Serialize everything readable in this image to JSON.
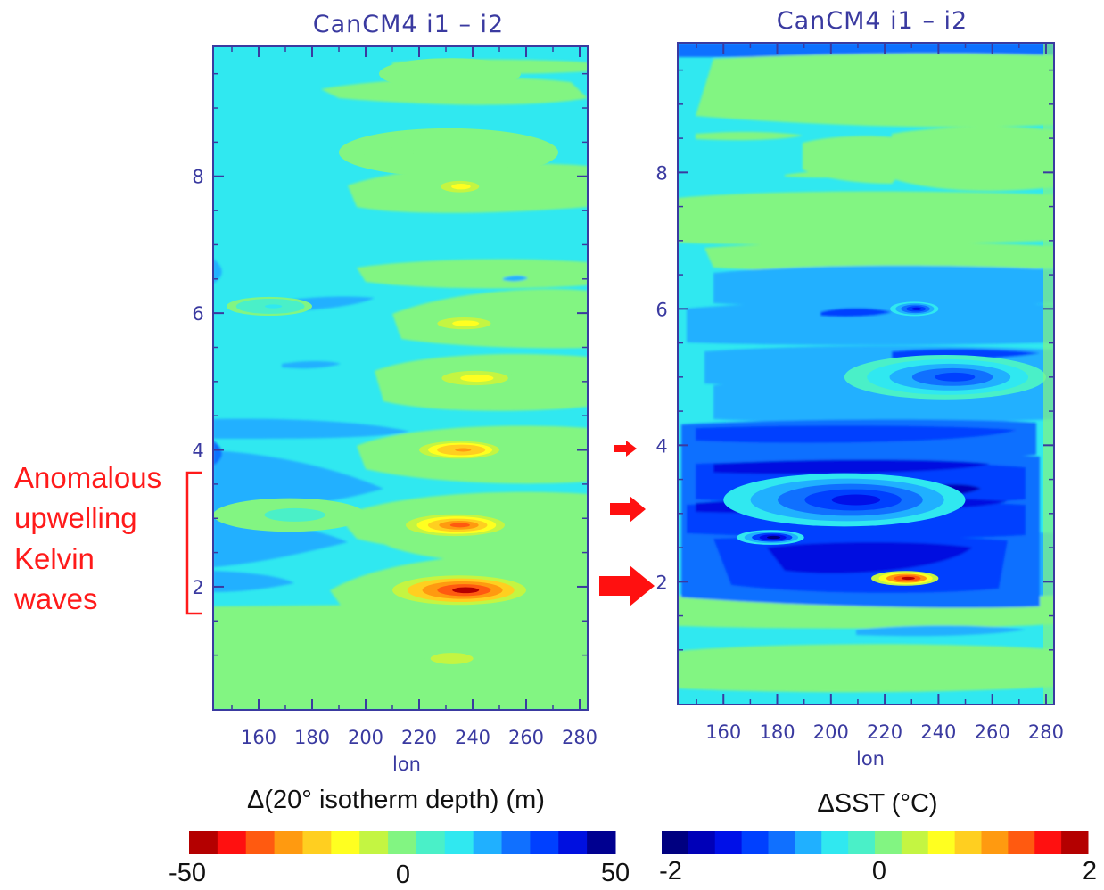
{
  "chart_data": [
    {
      "type": "heatmap",
      "title": "CanCM4 i1  –  i2",
      "xlabel": "lon",
      "x_ticks": [
        "160",
        "180",
        "200",
        "220",
        "240",
        "260",
        "280"
      ],
      "y_ticks": [
        "2",
        "4",
        "6",
        "8"
      ],
      "xlim": [
        143,
        283
      ],
      "ylim": [
        0.2,
        9.9
      ],
      "colorbar": {
        "label": "Δ(20° isotherm depth) (m)",
        "min_label": "-50",
        "mid_label": "0",
        "max_label": "50",
        "range": [
          -50,
          50
        ],
        "colors": [
          "#b40000",
          "#ff1010",
          "#ff5a10",
          "#ff9a10",
          "#ffcf20",
          "#ffff20",
          "#c4f542",
          "#82f582",
          "#4af0c8",
          "#30e8f0",
          "#20b0ff",
          "#1070ff",
          "#0040ff",
          "#0010e0",
          "#000090"
        ]
      },
      "features": [
        {
          "y": 9.5,
          "lon": [
            205,
            258
          ],
          "value": -3
        },
        {
          "y": 8.35,
          "lon": [
            190,
            272
          ],
          "value": -3
        },
        {
          "y": 7.85,
          "lon": [
            226,
            244
          ],
          "value": -16
        },
        {
          "y": 6.1,
          "lon": [
            148,
            180
          ],
          "value": 12
        },
        {
          "y": 5.85,
          "lon": [
            224,
            249
          ],
          "value": -16
        },
        {
          "y": 5.05,
          "lon": [
            225,
            256
          ],
          "value": -16
        },
        {
          "y": 4.0,
          "lon": [
            220,
            250
          ],
          "value": -28
        },
        {
          "y": 2.9,
          "lon": [
            215,
            252
          ],
          "value": -35
        },
        {
          "y": 1.95,
          "lon": [
            210,
            260
          ],
          "value": -44
        },
        {
          "y": 3.05,
          "lon": [
            143,
            200
          ],
          "value": 5
        },
        {
          "y": 0.95,
          "lon": [
            222,
            242
          ],
          "value": -10
        }
      ]
    },
    {
      "type": "heatmap",
      "title": "CanCM4 i1  –  i2",
      "xlabel": "lon",
      "x_ticks": [
        "160",
        "180",
        "200",
        "220",
        "240",
        "260",
        "280"
      ],
      "y_ticks": [
        "2",
        "4",
        "6",
        "8"
      ],
      "xlim": [
        143,
        283
      ],
      "ylim": [
        0.2,
        9.9
      ],
      "colorbar": {
        "label": "ΔSST (°C)",
        "min_label": "-2",
        "mid_label": "0",
        "max_label": "2",
        "range": [
          -2,
          2
        ],
        "colors": [
          "#000080",
          "#0000b8",
          "#0010e8",
          "#0040ff",
          "#1070ff",
          "#20b0ff",
          "#30e8f0",
          "#4af0c8",
          "#82f582",
          "#c4f542",
          "#ffff20",
          "#ffcf20",
          "#ff9a10",
          "#ff5a10",
          "#ff1010",
          "#b40000"
        ]
      },
      "features": [
        {
          "y": 6.0,
          "lon": [
            222,
            240
          ],
          "value": -1.5
        },
        {
          "y": 5.0,
          "lon": [
            205,
            280
          ],
          "value": -1.2
        },
        {
          "y": 3.2,
          "lon": [
            160,
            250
          ],
          "value": -1.5
        },
        {
          "y": 2.65,
          "lon": [
            165,
            190
          ],
          "value": -1.8
        },
        {
          "y": 2.05,
          "lon": [
            215,
            240
          ],
          "value": 1.8
        }
      ]
    }
  ],
  "annotation": {
    "lines": [
      "Anomalous",
      "upwelling",
      "Kelvin",
      "waves"
    ]
  },
  "colors": {
    "annotation": "#ff1a1a",
    "axis_text": "#3a3aa0"
  }
}
